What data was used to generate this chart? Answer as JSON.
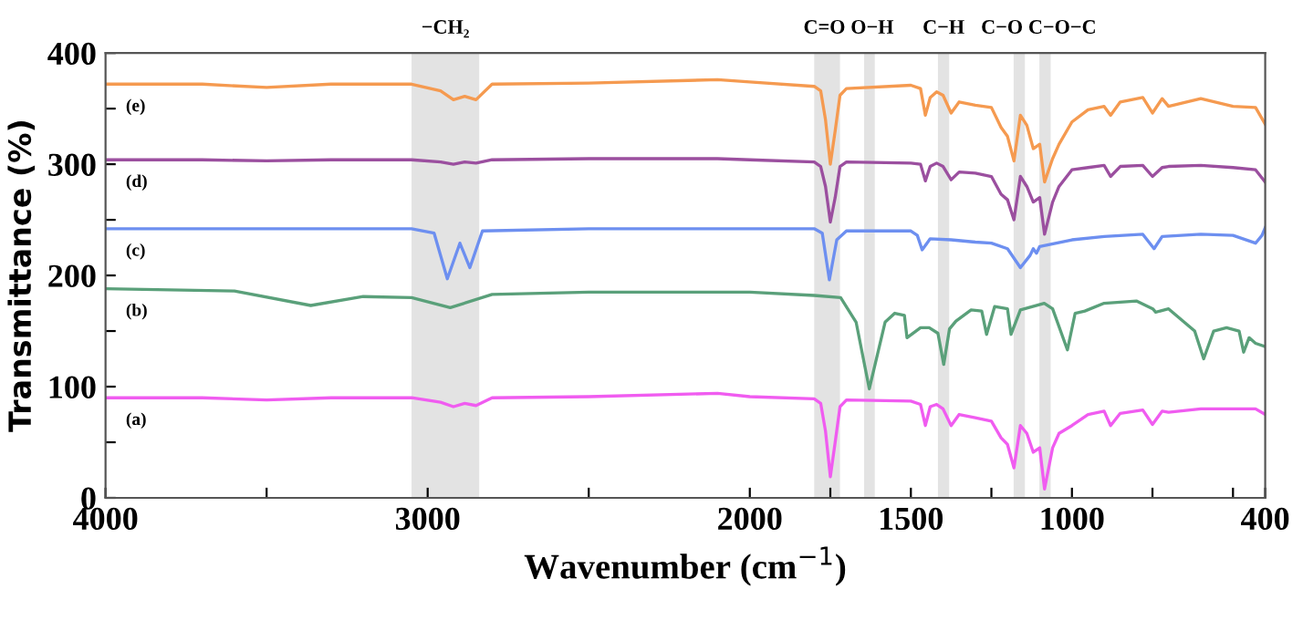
{
  "chart_data": {
    "type": "line",
    "xlabel": "Wavenumber (cm$^{−1}$)",
    "ylabel": "Transmittance (%)",
    "xlim": [
      4000,
      400
    ],
    "xticks": [
      4000,
      {
        "value": 3500,
        "label": null
      },
      3000,
      {
        "value": 2500,
        "label": null
      },
      2000,
      {
        "value": 1750,
        "label": null
      },
      1500,
      {
        "value": 1250,
        "label": null
      },
      1000,
      {
        "value": 750,
        "label": null
      },
      {
        "value": 500,
        "label": null
      },
      400
    ],
    "ylim": [
      0,
      400
    ],
    "yticks": [
      0,
      {
        "value": 50,
        "label": null
      },
      100,
      {
        "value": 150,
        "label": null
      },
      200,
      {
        "value": 250,
        "label": null
      },
      300,
      {
        "value": 350,
        "label": null
      },
      400
    ],
    "grid": false,
    "legend": false,
    "marker": "none",
    "line_style": "solid",
    "bands": [
      {
        "axis": "x",
        "from": 3050,
        "to": 2840,
        "label": "−CH₂",
        "color": "#e3e3e3"
      },
      {
        "axis": "x",
        "from": 1800,
        "to": 1720,
        "label": "C=O",
        "color": "#e3e3e3"
      },
      {
        "axis": "x",
        "from": 1645,
        "to": 1612,
        "label": "O−H",
        "color": "#e3e3e3"
      },
      {
        "axis": "x",
        "from": 1416,
        "to": 1381,
        "label": "C−H",
        "color": "#e3e3e3"
      },
      {
        "axis": "x",
        "from": 1181,
        "to": 1146,
        "label": "C−O",
        "color": "#e3e3e3"
      },
      {
        "axis": "x",
        "from": 1101,
        "to": 1066,
        "label": "C−O−C",
        "color": "#e3e3e3"
      }
    ],
    "series": [
      {
        "name": "(a)",
        "color": "#f05cf0",
        "x": [
          4000,
          3700,
          3500,
          3300,
          3050,
          2960,
          2920,
          2885,
          2850,
          2800,
          2500,
          2100,
          2000,
          1800,
          1780,
          1765,
          1750,
          1735,
          1720,
          1700,
          1500,
          1470,
          1455,
          1440,
          1420,
          1400,
          1375,
          1350,
          1300,
          1250,
          1220,
          1200,
          1180,
          1160,
          1140,
          1120,
          1100,
          1085,
          1060,
          1040,
          1000,
          950,
          900,
          880,
          850,
          780,
          750,
          720,
          700,
          600,
          500,
          430,
          400
        ],
        "values": [
          90,
          90,
          88,
          90,
          90,
          86,
          82,
          85,
          83,
          90,
          91,
          94,
          91,
          89,
          85,
          60,
          19,
          50,
          82,
          88,
          87,
          84,
          65,
          82,
          84,
          80,
          65,
          75,
          72,
          69,
          54,
          48,
          27,
          65,
          58,
          41,
          45,
          8,
          45,
          58,
          65,
          75,
          78,
          65,
          76,
          79,
          66,
          78,
          77,
          80,
          80,
          80,
          75
        ]
      },
      {
        "name": "(b)",
        "color": "#5aa07a",
        "x": [
          4000,
          3600,
          3363,
          3200,
          3050,
          2930,
          2800,
          2500,
          2000,
          1800,
          1718,
          1670,
          1629,
          1580,
          1550,
          1520,
          1512,
          1470,
          1443,
          1416,
          1398,
          1380,
          1360,
          1313,
          1280,
          1265,
          1240,
          1200,
          1189,
          1160,
          1086,
          1060,
          1014,
          990,
          960,
          900,
          800,
          749,
          740,
          700,
          619,
          591,
          560,
          520,
          481,
          467,
          450,
          430,
          400
        ],
        "values": [
          188,
          186,
          173,
          181,
          180,
          171,
          183,
          185,
          185,
          182,
          180,
          158,
          98,
          158,
          166,
          164,
          144,
          153,
          153,
          148,
          120,
          152,
          159,
          169,
          168,
          147,
          172,
          170,
          147,
          169,
          175,
          170,
          133,
          166,
          168,
          175,
          177,
          170,
          167,
          170,
          150,
          125,
          150,
          153,
          150,
          131,
          144,
          139,
          136
        ]
      },
      {
        "name": "(c)",
        "color": "#6d8ff0",
        "x": [
          4000,
          3500,
          3050,
          2980,
          2939,
          2900,
          2869,
          2830,
          2500,
          2000,
          1800,
          1775,
          1753,
          1730,
          1700,
          1500,
          1480,
          1465,
          1440,
          1375,
          1300,
          1250,
          1200,
          1160,
          1130,
          1120,
          1110,
          1100,
          1000,
          900,
          780,
          745,
          720,
          600,
          500,
          430,
          410,
          400
        ],
        "values": [
          242,
          242,
          242,
          238,
          197,
          229,
          207,
          240,
          242,
          242,
          242,
          238,
          196,
          232,
          240,
          240,
          236,
          223,
          233,
          232,
          230,
          229,
          224,
          207,
          218,
          224,
          220,
          226,
          232,
          235,
          237,
          224,
          235,
          237,
          236,
          229,
          236,
          243
        ]
      },
      {
        "name": "(d)",
        "color": "#9b4f9f",
        "x": [
          4000,
          3700,
          3500,
          3300,
          3050,
          2960,
          2920,
          2885,
          2850,
          2800,
          2500,
          2100,
          2000,
          1800,
          1780,
          1765,
          1750,
          1735,
          1720,
          1700,
          1500,
          1470,
          1455,
          1440,
          1420,
          1400,
          1375,
          1350,
          1300,
          1250,
          1220,
          1200,
          1180,
          1160,
          1140,
          1120,
          1100,
          1085,
          1060,
          1040,
          1000,
          950,
          900,
          880,
          850,
          780,
          750,
          720,
          700,
          600,
          500,
          430,
          400
        ],
        "values": [
          304,
          304,
          303,
          304,
          304,
          302,
          300,
          302,
          301,
          304,
          305,
          305,
          304,
          302,
          298,
          280,
          248,
          270,
          298,
          302,
          301,
          300,
          285,
          298,
          301,
          298,
          286,
          293,
          292,
          289,
          273,
          268,
          250,
          289,
          280,
          266,
          270,
          237,
          266,
          280,
          295,
          297,
          299,
          289,
          298,
          299,
          289,
          297,
          298,
          299,
          297,
          295,
          284
        ]
      },
      {
        "name": "(e)",
        "color": "#f59a50",
        "x": [
          4000,
          3700,
          3500,
          3300,
          3050,
          2960,
          2920,
          2885,
          2850,
          2800,
          2500,
          2100,
          2000,
          1800,
          1780,
          1765,
          1750,
          1735,
          1720,
          1700,
          1500,
          1470,
          1455,
          1440,
          1420,
          1400,
          1375,
          1350,
          1300,
          1250,
          1220,
          1200,
          1180,
          1160,
          1140,
          1120,
          1100,
          1085,
          1060,
          1040,
          1000,
          950,
          900,
          880,
          850,
          780,
          750,
          720,
          700,
          600,
          500,
          430,
          400
        ],
        "values": [
          372,
          372,
          369,
          372,
          372,
          366,
          358,
          361,
          358,
          372,
          373,
          376,
          374,
          370,
          366,
          340,
          300,
          330,
          362,
          368,
          371,
          368,
          344,
          360,
          365,
          362,
          346,
          356,
          353,
          351,
          333,
          325,
          303,
          344,
          335,
          314,
          318,
          284,
          305,
          318,
          338,
          349,
          352,
          344,
          356,
          360,
          346,
          359,
          352,
          359,
          352,
          351,
          336
        ]
      }
    ]
  }
}
